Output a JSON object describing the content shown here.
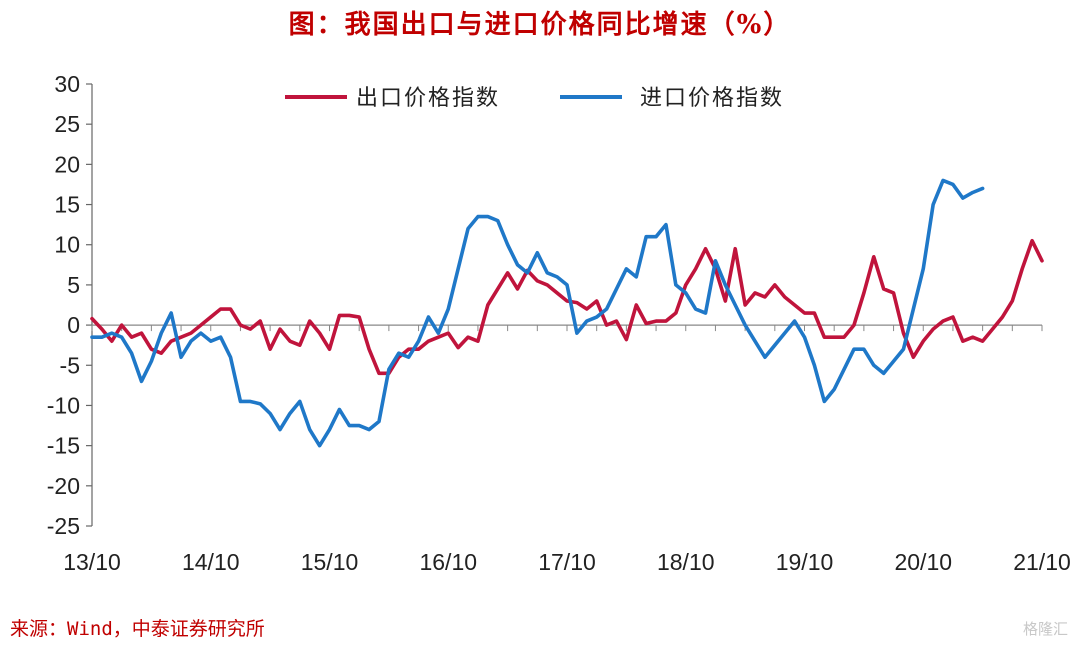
{
  "chart_data": {
    "type": "line",
    "title": "图：我国出口与进口价格同比增速（%）",
    "source": "来源：Wind，中泰证券研究所",
    "watermark": "格隆汇",
    "ylim": [
      -25,
      30
    ],
    "yticks": [
      30,
      25,
      20,
      15,
      10,
      5,
      0,
      -5,
      -10,
      -15,
      -20,
      -25
    ],
    "ytick_labels": [
      "30",
      "25",
      "20",
      "15",
      "10",
      "5",
      "0",
      "-5",
      "-10",
      "-15",
      "-20",
      "-25"
    ],
    "x_months_total": 96,
    "xtick_labels": [
      "13/10",
      "14/10",
      "15/10",
      "16/10",
      "17/10",
      "18/10",
      "19/10",
      "20/10",
      "21/10"
    ],
    "legend_position": "top-center",
    "grid": false,
    "series": [
      {
        "name": "出口价格指数",
        "color": "#c0143c",
        "points": [
          [
            0,
            0.8
          ],
          [
            1,
            -0.5
          ],
          [
            2,
            -2.0
          ],
          [
            3,
            0.0
          ],
          [
            4,
            -1.5
          ],
          [
            5,
            -1.0
          ],
          [
            6,
            -3.0
          ],
          [
            7,
            -3.5
          ],
          [
            8,
            -2.0
          ],
          [
            9,
            -1.5
          ],
          [
            10,
            -1.0
          ],
          [
            11,
            0.0
          ],
          [
            12,
            1.0
          ],
          [
            13,
            2.0
          ],
          [
            14,
            2.0
          ],
          [
            15,
            0.0
          ],
          [
            16,
            -0.5
          ],
          [
            17,
            0.5
          ],
          [
            18,
            -3.0
          ],
          [
            19,
            -0.5
          ],
          [
            20,
            -2.0
          ],
          [
            21,
            -2.5
          ],
          [
            22,
            0.5
          ],
          [
            23,
            -1.0
          ],
          [
            24,
            -3.0
          ],
          [
            25,
            1.2
          ],
          [
            26,
            1.2
          ],
          [
            27,
            1.0
          ],
          [
            28,
            -3.0
          ],
          [
            29,
            -6.0
          ],
          [
            30,
            -6.0
          ],
          [
            31,
            -4.0
          ],
          [
            32,
            -3.0
          ],
          [
            33,
            -3.0
          ],
          [
            34,
            -2.0
          ],
          [
            35,
            -1.5
          ],
          [
            36,
            -1.0
          ],
          [
            37,
            -2.8
          ],
          [
            38,
            -1.5
          ],
          [
            39,
            -2.0
          ],
          [
            40,
            2.5
          ],
          [
            41,
            4.5
          ],
          [
            42,
            6.5
          ],
          [
            43,
            4.5
          ],
          [
            44,
            6.8
          ],
          [
            45,
            5.5
          ],
          [
            46,
            5.0
          ],
          [
            47,
            4.0
          ],
          [
            48,
            3.0
          ],
          [
            49,
            2.8
          ],
          [
            50,
            2.0
          ],
          [
            51,
            3.0
          ],
          [
            52,
            0.0
          ],
          [
            53,
            0.5
          ],
          [
            54,
            -1.8
          ],
          [
            55,
            2.5
          ],
          [
            56,
            0.2
          ],
          [
            57,
            0.5
          ],
          [
            58,
            0.5
          ],
          [
            59,
            1.5
          ],
          [
            60,
            5.0
          ],
          [
            61,
            7.0
          ],
          [
            62,
            9.5
          ],
          [
            63,
            7.0
          ],
          [
            64,
            3.0
          ],
          [
            65,
            9.5
          ],
          [
            66,
            2.5
          ],
          [
            67,
            4.0
          ],
          [
            68,
            3.5
          ],
          [
            69,
            5.0
          ],
          [
            70,
            3.5
          ],
          [
            71,
            2.5
          ],
          [
            72,
            1.5
          ],
          [
            73,
            1.5
          ],
          [
            74,
            -1.5
          ],
          [
            75,
            -1.5
          ],
          [
            76,
            -1.5
          ],
          [
            77,
            0.0
          ],
          [
            78,
            4.0
          ],
          [
            79,
            8.5
          ],
          [
            80,
            4.5
          ],
          [
            81,
            4.0
          ],
          [
            82,
            -1.0
          ],
          [
            83,
            -4.0
          ],
          [
            84,
            -2.0
          ],
          [
            85,
            -0.5
          ],
          [
            86,
            0.5
          ],
          [
            87,
            1.0
          ],
          [
            88,
            -2.0
          ],
          [
            89,
            -1.5
          ],
          [
            90,
            -2.0
          ],
          [
            91,
            -0.5
          ],
          [
            92,
            1.0
          ],
          [
            93,
            3.0
          ],
          [
            94,
            7.0
          ],
          [
            95,
            10.5
          ],
          [
            96,
            8.0
          ]
        ]
      },
      {
        "name": "进口价格指数",
        "color": "#1f78c8",
        "points": [
          [
            0,
            -1.5
          ],
          [
            1,
            -1.5
          ],
          [
            2,
            -1.0
          ],
          [
            3,
            -1.5
          ],
          [
            4,
            -3.5
          ],
          [
            5,
            -7.0
          ],
          [
            6,
            -4.5
          ],
          [
            7,
            -1.0
          ],
          [
            8,
            1.5
          ],
          [
            9,
            -4.0
          ],
          [
            10,
            -2.0
          ],
          [
            11,
            -1.0
          ],
          [
            12,
            -2.0
          ],
          [
            13,
            -1.5
          ],
          [
            14,
            -4.0
          ],
          [
            15,
            -9.5
          ],
          [
            16,
            -9.5
          ],
          [
            17,
            -9.8
          ],
          [
            18,
            -11.0
          ],
          [
            19,
            -13.0
          ],
          [
            20,
            -11.0
          ],
          [
            21,
            -9.5
          ],
          [
            22,
            -13.0
          ],
          [
            23,
            -15.0
          ],
          [
            24,
            -13.0
          ],
          [
            25,
            -10.5
          ],
          [
            26,
            -12.5
          ],
          [
            27,
            -12.5
          ],
          [
            28,
            -13.0
          ],
          [
            29,
            -12.0
          ],
          [
            30,
            -5.5
          ],
          [
            31,
            -3.5
          ],
          [
            32,
            -4.0
          ],
          [
            33,
            -2.0
          ],
          [
            34,
            1.0
          ],
          [
            35,
            -1.0
          ],
          [
            36,
            2.0
          ],
          [
            37,
            7.0
          ],
          [
            38,
            12.0
          ],
          [
            39,
            13.5
          ],
          [
            40,
            13.5
          ],
          [
            41,
            13.0
          ],
          [
            42,
            10.0
          ],
          [
            43,
            7.5
          ],
          [
            44,
            6.5
          ],
          [
            45,
            9.0
          ],
          [
            46,
            6.5
          ],
          [
            47,
            6.0
          ],
          [
            48,
            5.0
          ],
          [
            49,
            -1.0
          ],
          [
            50,
            0.5
          ],
          [
            51,
            1.0
          ],
          [
            52,
            2.0
          ],
          [
            53,
            4.5
          ],
          [
            54,
            7.0
          ],
          [
            55,
            6.0
          ],
          [
            56,
            11.0
          ],
          [
            57,
            11.0
          ],
          [
            58,
            12.5
          ],
          [
            59,
            5.0
          ],
          [
            60,
            4.0
          ],
          [
            61,
            2.0
          ],
          [
            62,
            1.5
          ],
          [
            63,
            8.0
          ],
          [
            64,
            5.0
          ],
          [
            65,
            2.5
          ],
          [
            66,
            0.0
          ],
          [
            67,
            -2.0
          ],
          [
            68,
            -4.0
          ],
          [
            69,
            -2.5
          ],
          [
            70,
            -1.0
          ],
          [
            71,
            0.5
          ],
          [
            72,
            -1.5
          ],
          [
            73,
            -5.0
          ],
          [
            74,
            -9.5
          ],
          [
            75,
            -8.0
          ],
          [
            76,
            -5.5
          ],
          [
            77,
            -3.0
          ],
          [
            78,
            -3.0
          ],
          [
            79,
            -5.0
          ],
          [
            80,
            -6.0
          ],
          [
            81,
            -4.5
          ],
          [
            82,
            -3.0
          ],
          [
            83,
            2.0
          ],
          [
            84,
            7.0
          ],
          [
            85,
            15.0
          ],
          [
            86,
            18.0
          ],
          [
            87,
            17.5
          ],
          [
            88,
            15.8
          ],
          [
            89,
            16.5
          ],
          [
            90,
            17.0
          ]
        ]
      }
    ]
  }
}
